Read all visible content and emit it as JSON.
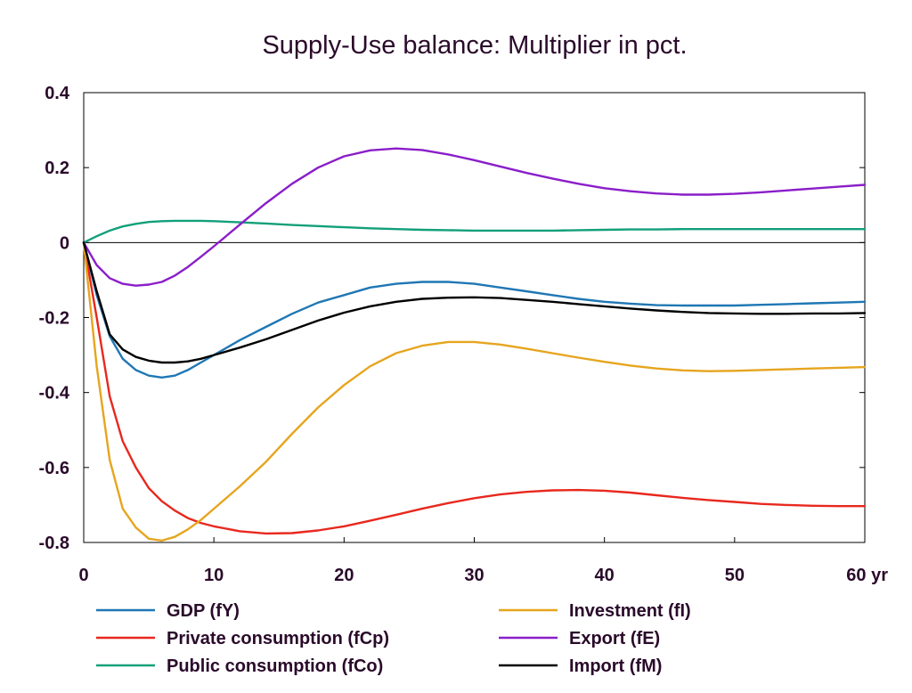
{
  "chart_data": {
    "type": "line",
    "title": "Supply-Use balance: Multiplier in pct.",
    "x_unit": "yr",
    "xlim": [
      0,
      60
    ],
    "ylim": [
      -0.8,
      0.4
    ],
    "x_ticks": [
      0,
      10,
      20,
      30,
      40,
      50,
      60
    ],
    "x_tick_labels": [
      "0",
      "10",
      "20",
      "30",
      "40",
      "50",
      "60 yr"
    ],
    "y_ticks": [
      -0.8,
      -0.6,
      -0.4,
      -0.2,
      0,
      0.2,
      0.4
    ],
    "y_tick_labels": [
      "-0.8",
      "-0.6",
      "-0.4",
      "-0.2",
      "0",
      "0.2",
      "0.4"
    ],
    "grid": false,
    "legend_position": "bottom",
    "x": [
      0,
      1,
      2,
      3,
      4,
      5,
      6,
      7,
      8,
      9,
      10,
      12,
      14,
      16,
      18,
      20,
      22,
      24,
      26,
      28,
      30,
      32,
      34,
      36,
      38,
      40,
      42,
      44,
      46,
      48,
      50,
      52,
      54,
      56,
      58,
      60
    ],
    "series": [
      {
        "name": "GDP (fY)",
        "color": "#1f77b4",
        "values": [
          0,
          -0.14,
          -0.25,
          -0.31,
          -0.34,
          -0.355,
          -0.36,
          -0.355,
          -0.34,
          -0.32,
          -0.3,
          -0.26,
          -0.225,
          -0.19,
          -0.16,
          -0.14,
          -0.12,
          -0.11,
          -0.105,
          -0.105,
          -0.11,
          -0.12,
          -0.13,
          -0.14,
          -0.15,
          -0.158,
          -0.163,
          -0.167,
          -0.168,
          -0.168,
          -0.168,
          -0.166,
          -0.164,
          -0.162,
          -0.16,
          -0.158
        ]
      },
      {
        "name": "Private consumption (fCp)",
        "color": "#e8281e",
        "values": [
          0,
          -0.2,
          -0.41,
          -0.53,
          -0.6,
          -0.655,
          -0.69,
          -0.715,
          -0.735,
          -0.748,
          -0.757,
          -0.77,
          -0.776,
          -0.775,
          -0.768,
          -0.757,
          -0.742,
          -0.726,
          -0.71,
          -0.695,
          -0.682,
          -0.672,
          -0.665,
          -0.661,
          -0.66,
          -0.662,
          -0.667,
          -0.674,
          -0.681,
          -0.687,
          -0.692,
          -0.697,
          -0.7,
          -0.702,
          -0.703,
          -0.703
        ]
      },
      {
        "name": "Public consumption (fCo)",
        "color": "#12a079",
        "values": [
          0,
          0.017,
          0.032,
          0.043,
          0.05,
          0.055,
          0.057,
          0.058,
          0.058,
          0.058,
          0.057,
          0.054,
          0.051,
          0.047,
          0.044,
          0.041,
          0.038,
          0.036,
          0.034,
          0.033,
          0.032,
          0.032,
          0.032,
          0.032,
          0.033,
          0.034,
          0.035,
          0.035,
          0.036,
          0.036,
          0.036,
          0.036,
          0.036,
          0.036,
          0.036,
          0.036
        ]
      },
      {
        "name": "Investment (fI)",
        "color": "#e6a51e",
        "values": [
          0,
          -0.33,
          -0.58,
          -0.71,
          -0.76,
          -0.79,
          -0.795,
          -0.785,
          -0.765,
          -0.74,
          -0.71,
          -0.65,
          -0.585,
          -0.51,
          -0.44,
          -0.38,
          -0.33,
          -0.295,
          -0.275,
          -0.265,
          -0.265,
          -0.272,
          -0.283,
          -0.295,
          -0.307,
          -0.318,
          -0.328,
          -0.336,
          -0.341,
          -0.343,
          -0.342,
          -0.34,
          -0.338,
          -0.336,
          -0.334,
          -0.332
        ]
      },
      {
        "name": "Export (fE)",
        "color": "#8a1ec9",
        "values": [
          0,
          -0.06,
          -0.095,
          -0.11,
          -0.115,
          -0.112,
          -0.105,
          -0.088,
          -0.065,
          -0.038,
          -0.01,
          0.048,
          0.105,
          0.157,
          0.2,
          0.23,
          0.246,
          0.251,
          0.247,
          0.235,
          0.22,
          0.203,
          0.186,
          0.171,
          0.157,
          0.145,
          0.137,
          0.131,
          0.128,
          0.128,
          0.13,
          0.134,
          0.139,
          0.144,
          0.149,
          0.154
        ]
      },
      {
        "name": "Import (fM)",
        "color": "#000000",
        "values": [
          0,
          -0.13,
          -0.245,
          -0.285,
          -0.305,
          -0.315,
          -0.32,
          -0.32,
          -0.317,
          -0.31,
          -0.3,
          -0.28,
          -0.258,
          -0.233,
          -0.208,
          -0.187,
          -0.17,
          -0.158,
          -0.15,
          -0.147,
          -0.146,
          -0.148,
          -0.153,
          -0.158,
          -0.164,
          -0.17,
          -0.176,
          -0.181,
          -0.185,
          -0.188,
          -0.189,
          -0.19,
          -0.19,
          -0.189,
          -0.189,
          -0.188
        ]
      }
    ]
  }
}
